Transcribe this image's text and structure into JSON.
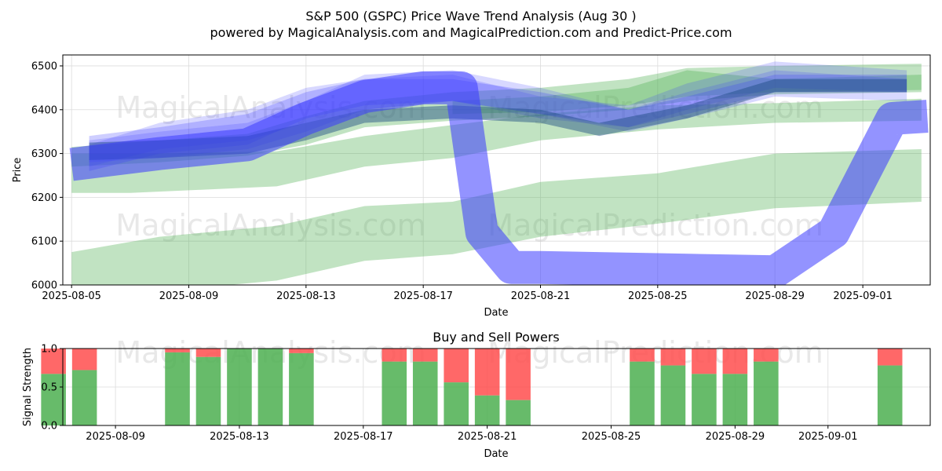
{
  "figure": {
    "title": "S&P 500 (GSPC) Price Wave Trend Analysis (Aug 30 )",
    "subtitle": "powered by MagicalAnalysis.com and MagicalPrediction.com and Predict-Price.com",
    "watermarks": [
      "MagicalAnalysis.com",
      "MagicalPrediction.com"
    ]
  },
  "colors": {
    "green_band": "#4caf50",
    "blue_band": "#3a3aff",
    "dark_band": "#1a4a80",
    "buy": "#4caf50",
    "sell": "#ff4d4d"
  },
  "chart_data": [
    {
      "type": "area",
      "title": "",
      "xlabel": "Date",
      "ylabel": "Price",
      "ylim": [
        6000,
        6525
      ],
      "xrange_days": [
        -0.3,
        29.3
      ],
      "x_ticks": [
        {
          "day": 0,
          "label": "2025-08-05"
        },
        {
          "day": 4,
          "label": "2025-08-09"
        },
        {
          "day": 8,
          "label": "2025-08-13"
        },
        {
          "day": 12,
          "label": "2025-08-17"
        },
        {
          "day": 16,
          "label": "2025-08-21"
        },
        {
          "day": 20,
          "label": "2025-08-25"
        },
        {
          "day": 24,
          "label": "2025-08-29"
        },
        {
          "day": 27,
          "label": "2025-09-01"
        }
      ],
      "y_ticks": [
        6000,
        6100,
        6200,
        6300,
        6400,
        6500
      ],
      "grid": true,
      "series": [
        {
          "name": "green-band-upper",
          "color": "green",
          "opacity": 0.35,
          "points": [
            [
              0,
              6315
            ],
            [
              3,
              6330
            ],
            [
              6,
              6345
            ],
            [
              8,
              6385
            ],
            [
              10,
              6420
            ],
            [
              13,
              6440
            ],
            [
              16,
              6450
            ],
            [
              19,
              6470
            ],
            [
              21,
              6495
            ],
            [
              24,
              6500
            ],
            [
              29,
              6505
            ]
          ],
          "lower": [
            [
              0,
              6270
            ],
            [
              3,
              6280
            ],
            [
              6,
              6295
            ],
            [
              8,
              6320
            ],
            [
              10,
              6360
            ],
            [
              13,
              6375
            ],
            [
              16,
              6385
            ],
            [
              19,
              6400
            ],
            [
              21,
              6420
            ],
            [
              24,
              6435
            ],
            [
              29,
              6440
            ]
          ]
        },
        {
          "name": "green-band-wide",
          "color": "green",
          "opacity": 0.35,
          "points": [
            [
              0,
              6300
            ],
            [
              3,
              6300
            ],
            [
              7,
              6305
            ],
            [
              10,
              6340
            ],
            [
              13,
              6365
            ],
            [
              16,
              6390
            ],
            [
              20,
              6410
            ],
            [
              24,
              6415
            ],
            [
              29,
              6425
            ]
          ],
          "lower": [
            [
              0,
              6210
            ],
            [
              2,
              6210
            ],
            [
              7,
              6225
            ],
            [
              10,
              6270
            ],
            [
              13,
              6290
            ],
            [
              16,
              6330
            ],
            [
              20,
              6355
            ],
            [
              24,
              6370
            ],
            [
              29,
              6375
            ]
          ]
        },
        {
          "name": "green-band-mid",
          "color": "green",
          "opacity": 0.35,
          "points": [
            [
              0,
              6075
            ],
            [
              3,
              6110
            ],
            [
              7,
              6135
            ],
            [
              10,
              6180
            ],
            [
              13,
              6190
            ],
            [
              16,
              6235
            ],
            [
              20,
              6255
            ],
            [
              24,
              6300
            ],
            [
              29,
              6310
            ]
          ],
          "lower": [
            [
              0,
              6000
            ],
            [
              3,
              5985
            ],
            [
              7,
              6010
            ],
            [
              10,
              6055
            ],
            [
              13,
              6070
            ],
            [
              16,
              6110
            ],
            [
              20,
              6140
            ],
            [
              24,
              6175
            ],
            [
              29,
              6190
            ]
          ]
        },
        {
          "name": "green-band-late",
          "color": "green",
          "opacity": 0.35,
          "points": [
            [
              13,
              6420
            ],
            [
              16,
              6430
            ],
            [
              19,
              6450
            ],
            [
              21,
              6490
            ],
            [
              24,
              6470
            ],
            [
              29,
              6480
            ]
          ],
          "lower": [
            [
              13,
              6390
            ],
            [
              16,
              6395
            ],
            [
              19,
              6410
            ],
            [
              21,
              6430
            ],
            [
              24,
              6440
            ],
            [
              29,
              6445
            ]
          ]
        },
        {
          "name": "blue-wave-1",
          "color": "blue",
          "opacity": 0.2,
          "points": [
            [
              0.6,
              6330
            ],
            [
              3,
              6350
            ],
            [
              6,
              6370
            ],
            [
              8,
              6420
            ],
            [
              10,
              6480
            ],
            [
              13,
              6490
            ],
            [
              16,
              6450
            ],
            [
              19,
              6400
            ],
            [
              21,
              6440
            ],
            [
              24,
              6490
            ],
            [
              28.5,
              6470
            ]
          ],
          "lower": [
            [
              0.6,
              6280
            ],
            [
              3,
              6290
            ],
            [
              6,
              6310
            ],
            [
              8,
              6350
            ],
            [
              10,
              6400
            ],
            [
              13,
              6420
            ],
            [
              16,
              6390
            ],
            [
              19,
              6350
            ],
            [
              21,
              6380
            ],
            [
              24,
              6430
            ],
            [
              28.5,
              6420
            ]
          ]
        },
        {
          "name": "blue-wave-2",
          "color": "blue",
          "opacity": 0.2,
          "points": [
            [
              0.6,
              6320
            ],
            [
              3,
              6370
            ],
            [
              6,
              6400
            ],
            [
              8,
              6450
            ],
            [
              10,
              6470
            ],
            [
              13,
              6480
            ],
            [
              16,
              6430
            ],
            [
              19,
              6410
            ],
            [
              21,
              6460
            ],
            [
              24,
              6510
            ],
            [
              28.5,
              6490
            ]
          ],
          "lower": [
            [
              0.6,
              6270
            ],
            [
              3,
              6310
            ],
            [
              6,
              6330
            ],
            [
              8,
              6370
            ],
            [
              10,
              6400
            ],
            [
              13,
              6420
            ],
            [
              16,
              6380
            ],
            [
              19,
              6360
            ],
            [
              21,
              6400
            ],
            [
              24,
              6450
            ],
            [
              28.5,
              6440
            ]
          ]
        },
        {
          "name": "blue-wave-3",
          "color": "blue",
          "opacity": 0.25,
          "points": [
            [
              0.6,
              6340
            ],
            [
              3,
              6360
            ],
            [
              6,
              6390
            ],
            [
              8,
              6440
            ],
            [
              10,
              6470
            ],
            [
              13,
              6470
            ],
            [
              16,
              6440
            ],
            [
              19,
              6400
            ],
            [
              21,
              6430
            ],
            [
              24,
              6480
            ],
            [
              28.5,
              6480
            ]
          ],
          "lower": [
            [
              0.6,
              6260
            ],
            [
              3,
              6300
            ],
            [
              6,
              6320
            ],
            [
              8,
              6380
            ],
            [
              10,
              6410
            ],
            [
              13,
              6420
            ],
            [
              16,
              6390
            ],
            [
              19,
              6360
            ],
            [
              21,
              6390
            ],
            [
              24,
              6440
            ],
            [
              28.5,
              6440
            ]
          ]
        },
        {
          "name": "dark-core",
          "color": "dark",
          "opacity": 0.45,
          "points": [
            [
              0.6,
              6325
            ],
            [
              3,
              6330
            ],
            [
              6,
              6340
            ],
            [
              8,
              6370
            ],
            [
              10,
              6400
            ],
            [
              13,
              6410
            ],
            [
              16,
              6400
            ],
            [
              18,
              6370
            ],
            [
              21,
              6410
            ],
            [
              24,
              6470
            ],
            [
              28.5,
              6470
            ]
          ],
          "lower": [
            [
              0.6,
              6285
            ],
            [
              3,
              6290
            ],
            [
              6,
              6300
            ],
            [
              8,
              6330
            ],
            [
              10,
              6370
            ],
            [
              13,
              6380
            ],
            [
              16,
              6370
            ],
            [
              18,
              6340
            ],
            [
              21,
              6380
            ],
            [
              24,
              6440
            ],
            [
              28.5,
              6440
            ]
          ]
        }
      ],
      "lines": [
        {
          "name": "blue-wave-lead",
          "color": "blue",
          "opacity": 0.55,
          "width": 42,
          "points": [
            [
              0,
              6275
            ],
            [
              3,
              6300
            ],
            [
              6,
              6320
            ],
            [
              8,
              6380
            ],
            [
              10,
              6430
            ],
            [
              12,
              6450
            ],
            [
              13.3,
              6450
            ],
            [
              14,
              6120
            ],
            [
              15,
              6040
            ],
            [
              16,
              6040
            ],
            [
              20,
              6035
            ],
            [
              24,
              6030
            ],
            [
              26,
              6120
            ],
            [
              28,
              6380
            ],
            [
              29.2,
              6385
            ]
          ]
        }
      ]
    },
    {
      "type": "bar",
      "title": "Buy and Sell Powers",
      "xlabel": "Date",
      "ylabel": "Signal Strength",
      "ylim": [
        0,
        1
      ],
      "y_ticks": [
        0.0,
        0.5,
        1.0
      ],
      "y_tick_labels": [
        "0.0",
        "0.5",
        "1.0"
      ],
      "xrange_days": [
        2.3,
        30.3
      ],
      "x_ticks": [
        {
          "day": 4,
          "label": "2025-08-09"
        },
        {
          "day": 8,
          "label": "2025-08-13"
        },
        {
          "day": 12,
          "label": "2025-08-17"
        },
        {
          "day": 16,
          "label": "2025-08-21"
        },
        {
          "day": 20,
          "label": "2025-08-25"
        },
        {
          "day": 24,
          "label": "2025-08-29"
        },
        {
          "day": 27,
          "label": "2025-09-01"
        }
      ],
      "series": [
        {
          "name": "Buy",
          "color": "buy"
        },
        {
          "name": "Sell",
          "color": "sell"
        }
      ],
      "bars": [
        {
          "day": 2,
          "buy": 0.67
        },
        {
          "day": 3,
          "buy": 0.72
        },
        {
          "day": 6,
          "buy": 0.95
        },
        {
          "day": 7,
          "buy": 0.89
        },
        {
          "day": 8,
          "buy": 1.0
        },
        {
          "day": 9,
          "buy": 1.0
        },
        {
          "day": 10,
          "buy": 0.94
        },
        {
          "day": 13,
          "buy": 0.83
        },
        {
          "day": 14,
          "buy": 0.83
        },
        {
          "day": 15,
          "buy": 0.56
        },
        {
          "day": 16,
          "buy": 0.39
        },
        {
          "day": 17,
          "buy": 0.33
        },
        {
          "day": 21,
          "buy": 0.83
        },
        {
          "day": 22,
          "buy": 0.78
        },
        {
          "day": 23,
          "buy": 0.67
        },
        {
          "day": 24,
          "buy": 0.67
        },
        {
          "day": 25,
          "buy": 0.83
        },
        {
          "day": 29,
          "buy": 0.78
        }
      ]
    }
  ]
}
